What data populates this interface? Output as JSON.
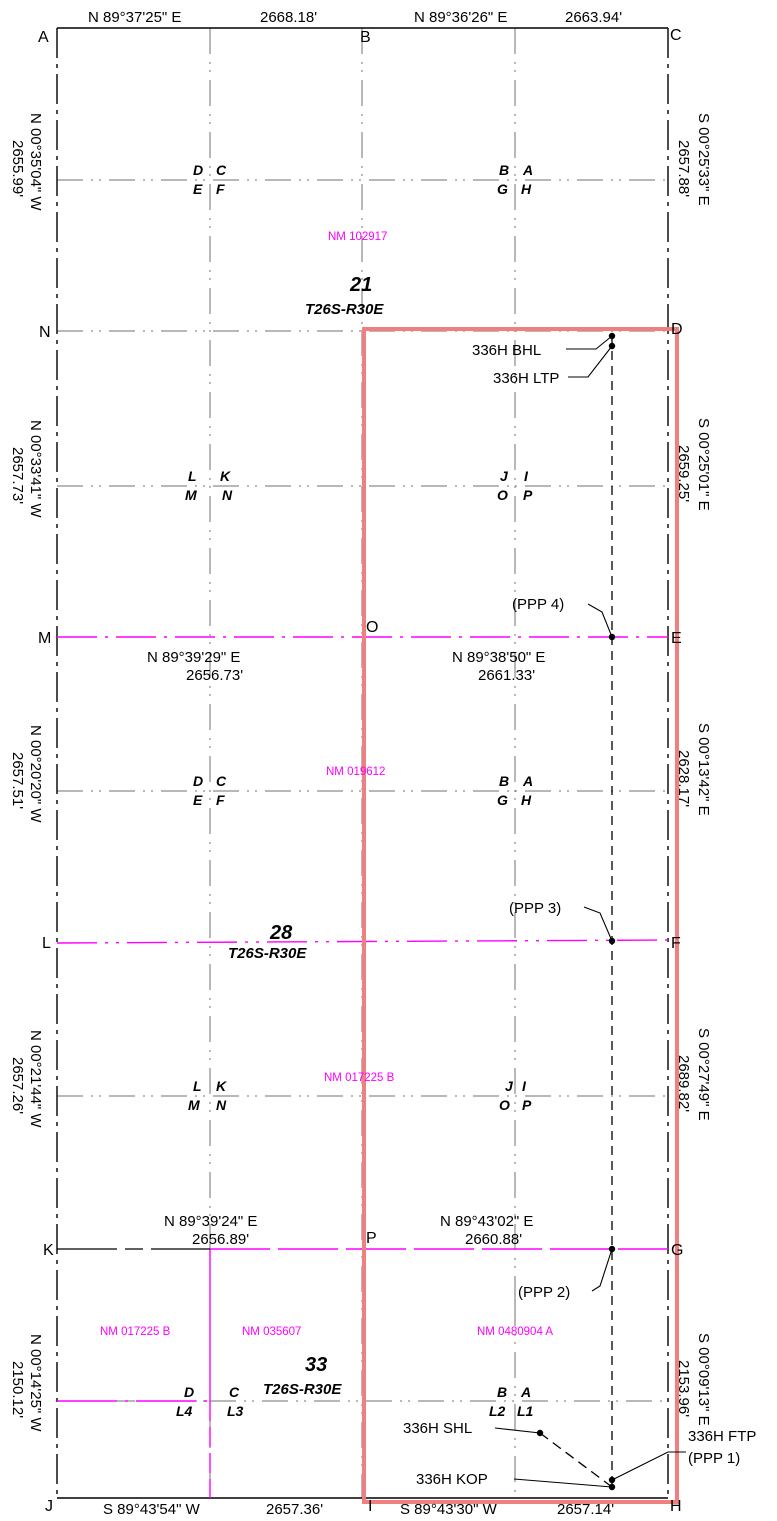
{
  "colors": {
    "line": "#000000",
    "grid": "#555555",
    "magenta": "#ff00ff",
    "highlight": "#f08080"
  },
  "corners": {
    "A": "A",
    "B": "B",
    "C": "C",
    "D": "D",
    "E": "E",
    "F": "F",
    "G": "G",
    "H": "H",
    "I": "I",
    "J": "J",
    "K": "K",
    "L": "L",
    "M": "M",
    "N": "N",
    "O": "O",
    "P": "P"
  },
  "top_bearings": {
    "left": "N 89°37'25\" E",
    "left_dist": "2668.18'",
    "right": "N 89°36'26\" E",
    "right_dist": "2663.94'"
  },
  "bottom_bearings": {
    "left": "S 89°43'54\" W",
    "left_dist": "2657.36'",
    "right": "S 89°43'30\" W",
    "right_dist": "2657.14'"
  },
  "line_M_bearings": {
    "left": "N 89°39'29\" E",
    "left_dist": "2656.73'",
    "right": "N 89°38'50\" E",
    "right_dist": "2661.33'"
  },
  "line_K_bearings": {
    "left": "N 89°39'24\" E",
    "left_dist": "2656.89'",
    "right": "N 89°43'02\" E",
    "right_dist": "2660.88'"
  },
  "left_bearings": [
    {
      "bearing": "N 00°35'04\" W",
      "dist": "2655.99'"
    },
    {
      "bearing": "N 00°33'41\" W",
      "dist": "2657.73'"
    },
    {
      "bearing": "N 00°20'20\" W",
      "dist": "2657.51'"
    },
    {
      "bearing": "N 00°21'44\" W",
      "dist": "2657.26'"
    },
    {
      "bearing": "N 00°14'25\" W",
      "dist": "2150.12'"
    }
  ],
  "right_bearings": [
    {
      "bearing": "S 00°25'33\" E",
      "dist": "2657.88'"
    },
    {
      "bearing": "S 00°25'01\" E",
      "dist": "2659.25'"
    },
    {
      "bearing": "S 00°13'42\" E",
      "dist": "2628.17'"
    },
    {
      "bearing": "S 00°27'49\" E",
      "dist": "2689.82'"
    },
    {
      "bearing": "S 00°09'13\" E",
      "dist": "2153.96'"
    }
  ],
  "sections": [
    {
      "number": "21",
      "township": "T26S-R30E"
    },
    {
      "number": "28",
      "township": "T26S-R30E"
    },
    {
      "number": "33",
      "township": "T26S-R30E"
    }
  ],
  "leases": {
    "nm_102917": "NM 102917",
    "nm_019612": "NM 019612",
    "nm_017225b_sec28": "NM 017225 B",
    "nm_017225b_sec33": "NM 017225 B",
    "nm_035607": "NM 035607",
    "nm_0480904a": "NM 0480904 A"
  },
  "quarter_labels": {
    "A": "A",
    "B": "B",
    "C": "C",
    "D": "D",
    "E": "E",
    "F": "F",
    "G": "G",
    "H": "H",
    "I": "I",
    "J": "J",
    "K": "K",
    "L": "L",
    "M": "M",
    "N": "N",
    "O": "O",
    "P": "P",
    "L1": "L1",
    "L2": "L2",
    "L3": "L3",
    "L4": "L4"
  },
  "well_points": {
    "bhl": "336H BHL",
    "ltp": "336H LTP",
    "ppp4": "(PPP 4)",
    "ppp3": "(PPP 3)",
    "ppp2": "(PPP 2)",
    "ftp": "336H FTP",
    "ppp1": "(PPP 1)",
    "shl": "336H SHL",
    "kop": "336H KOP"
  }
}
